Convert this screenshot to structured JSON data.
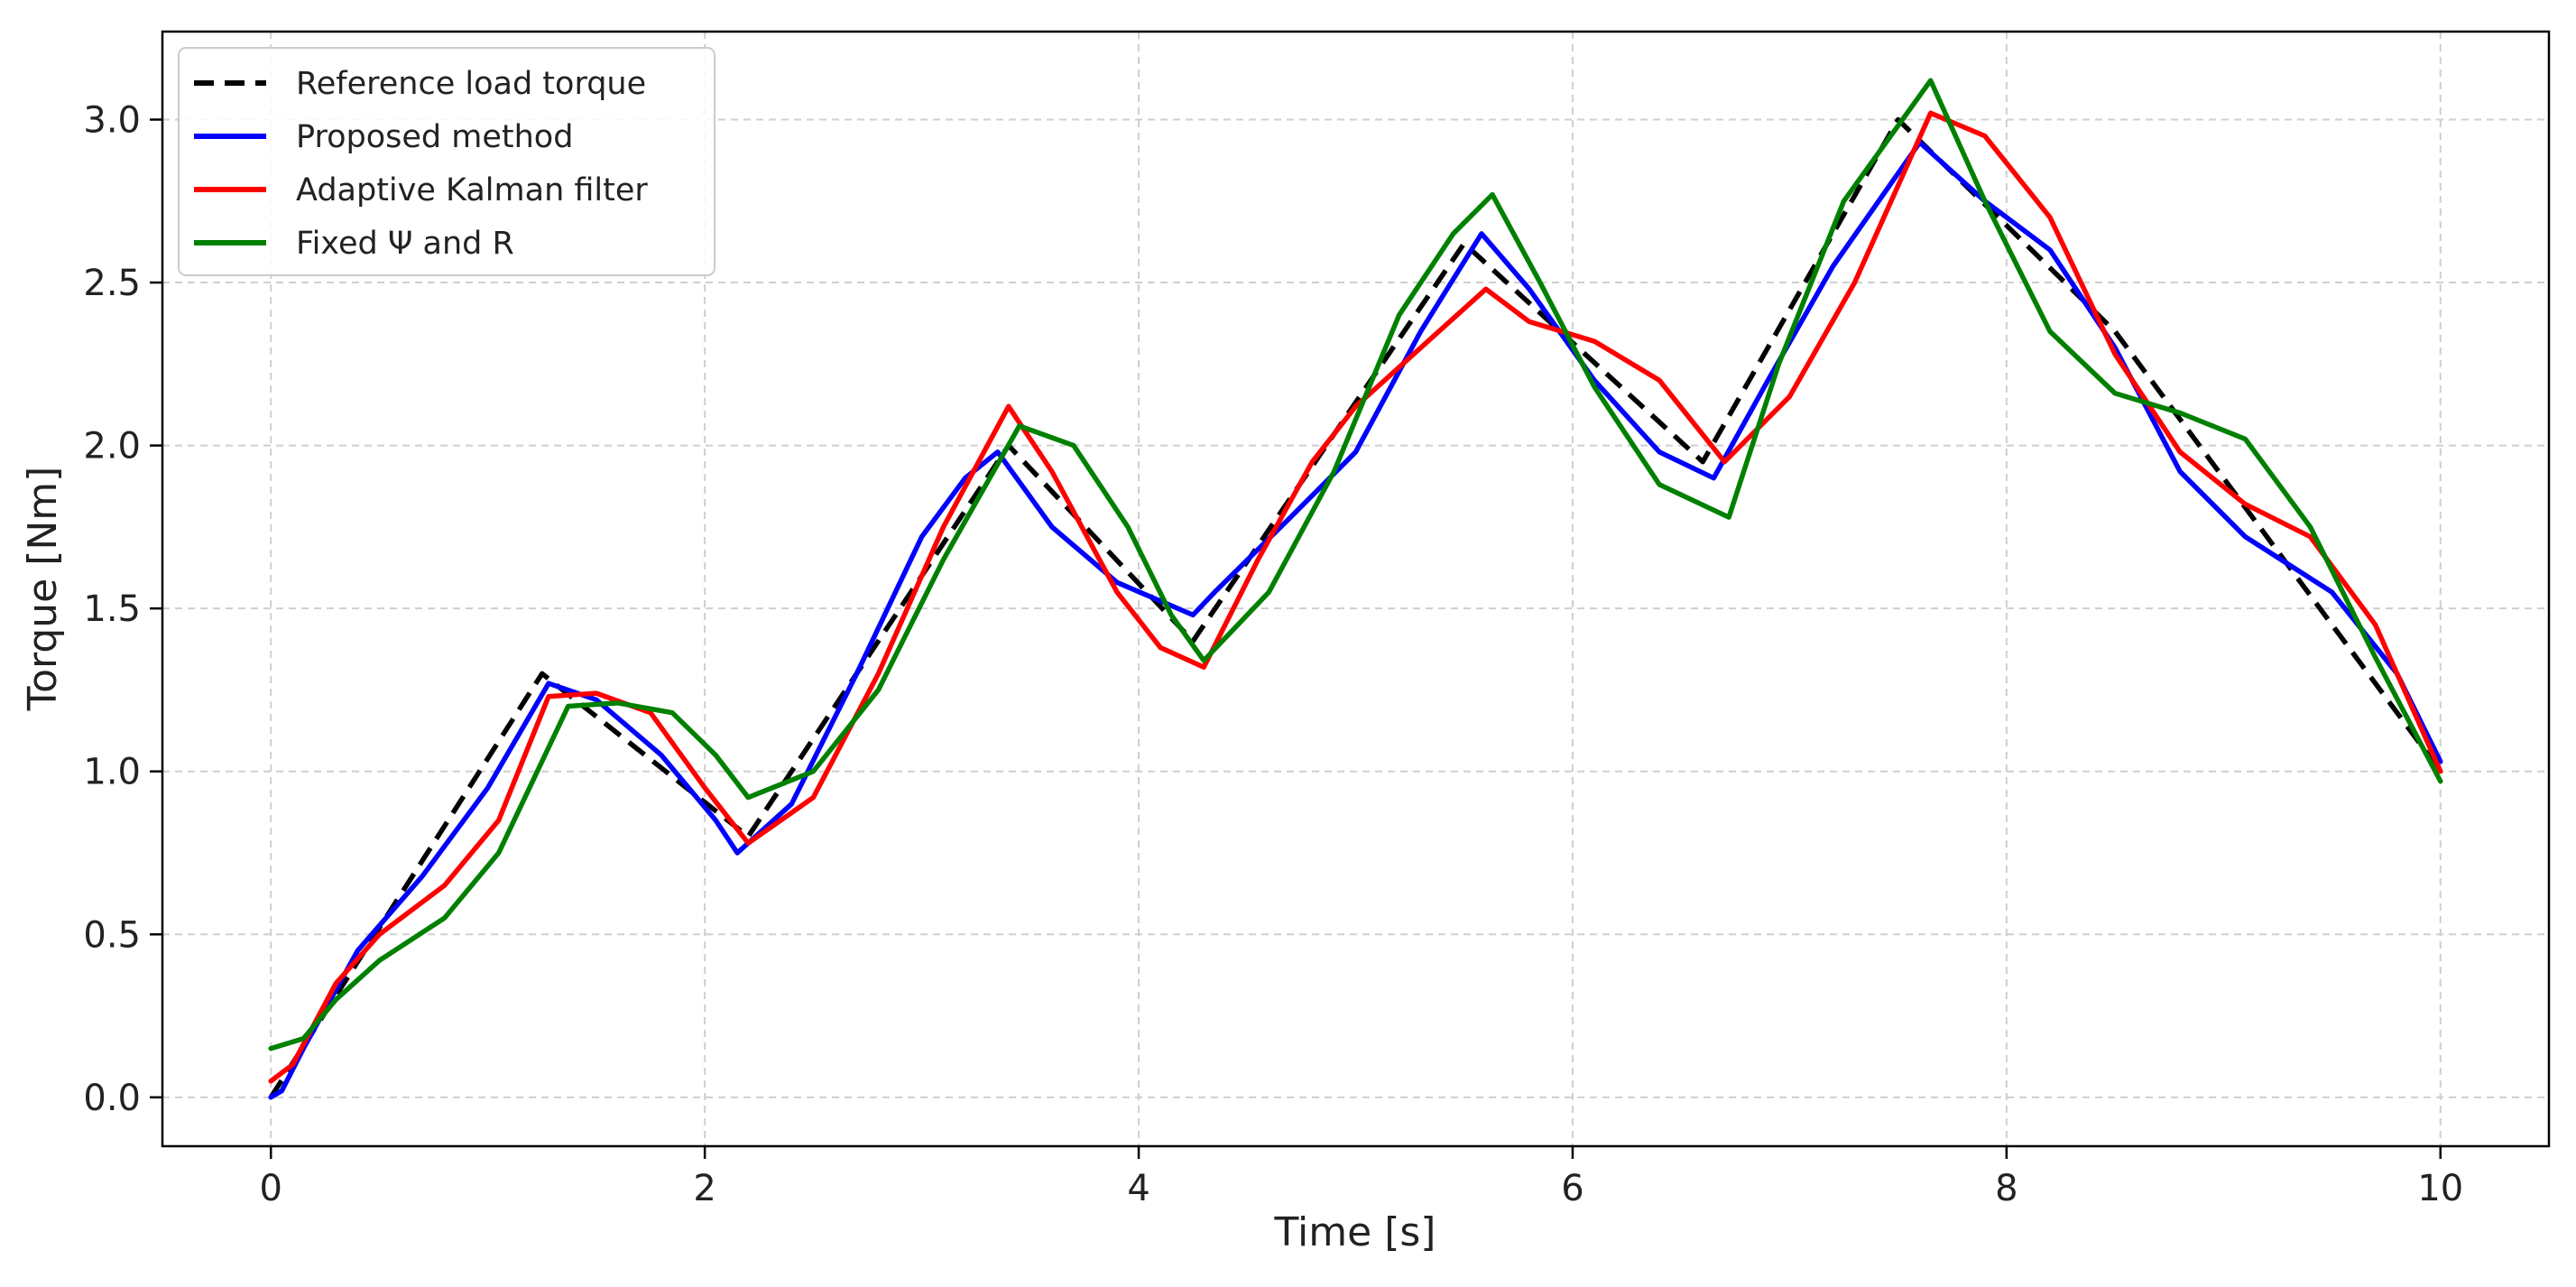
{
  "chart_data": {
    "type": "line",
    "title": "",
    "xlabel": "Time [s]",
    "ylabel": "Torque [Nm]",
    "xlim": [
      -0.5,
      10.5
    ],
    "ylim": [
      -0.15,
      3.27
    ],
    "xticks": [
      0,
      2,
      4,
      6,
      8,
      10
    ],
    "xtick_labels": [
      "0",
      "2",
      "4",
      "6",
      "8",
      "10"
    ],
    "yticks": [
      0.0,
      0.5,
      1.0,
      1.5,
      2.0,
      2.5,
      3.0
    ],
    "ytick_labels": [
      "0.0",
      "0.5",
      "1.0",
      "1.5",
      "2.0",
      "2.5",
      "3.0"
    ],
    "grid": true,
    "legend_position": "top-left",
    "series": [
      {
        "name": "Reference load torque",
        "color": "#000000",
        "dash": "dashed",
        "x": [
          0,
          1.25,
          2.2,
          3.4,
          4.25,
          5.5,
          6.6,
          7.5,
          8.5,
          10.0
        ],
        "y": [
          0.0,
          1.3,
          0.8,
          2.0,
          1.4,
          2.62,
          1.95,
          3.0,
          2.35,
          1.0
        ]
      },
      {
        "name": "Proposed method",
        "color": "#0000ff",
        "dash": "solid",
        "x": [
          0,
          0.05,
          0.15,
          0.4,
          0.7,
          1.0,
          1.28,
          1.5,
          1.8,
          2.05,
          2.15,
          2.4,
          2.7,
          3.0,
          3.2,
          3.35,
          3.6,
          3.9,
          4.25,
          4.35,
          4.7,
          5.0,
          5.3,
          5.58,
          5.8,
          6.1,
          6.4,
          6.65,
          6.9,
          7.2,
          7.6,
          7.9,
          8.2,
          8.5,
          8.8,
          9.1,
          9.5,
          9.8,
          10.0
        ],
        "y": [
          0.0,
          0.02,
          0.15,
          0.45,
          0.68,
          0.95,
          1.27,
          1.22,
          1.05,
          0.85,
          0.75,
          0.9,
          1.3,
          1.72,
          1.9,
          1.98,
          1.75,
          1.58,
          1.48,
          1.55,
          1.78,
          1.98,
          2.35,
          2.65,
          2.48,
          2.2,
          1.98,
          1.9,
          2.2,
          2.55,
          2.93,
          2.75,
          2.6,
          2.3,
          1.92,
          1.72,
          1.55,
          1.3,
          1.03
        ]
      },
      {
        "name": "Adaptive Kalman filter",
        "color": "#ff0000",
        "dash": "solid",
        "x": [
          0,
          0.1,
          0.3,
          0.5,
          0.8,
          1.05,
          1.28,
          1.5,
          1.75,
          2.0,
          2.2,
          2.5,
          2.8,
          3.1,
          3.4,
          3.6,
          3.9,
          4.1,
          4.3,
          4.55,
          4.8,
          5.0,
          5.3,
          5.6,
          5.8,
          6.1,
          6.4,
          6.7,
          7.0,
          7.3,
          7.65,
          7.9,
          8.2,
          8.5,
          8.8,
          9.1,
          9.4,
          9.7,
          10.0
        ],
        "y": [
          0.05,
          0.1,
          0.35,
          0.5,
          0.65,
          0.85,
          1.23,
          1.24,
          1.18,
          0.95,
          0.78,
          0.92,
          1.3,
          1.75,
          2.12,
          1.92,
          1.55,
          1.38,
          1.32,
          1.65,
          1.95,
          2.12,
          2.3,
          2.48,
          2.38,
          2.32,
          2.2,
          1.95,
          2.15,
          2.5,
          3.02,
          2.95,
          2.7,
          2.28,
          1.98,
          1.82,
          1.72,
          1.45,
          1.0
        ]
      },
      {
        "name": "Fixed Ψ and R",
        "color": "#008000",
        "dash": "solid",
        "x": [
          0,
          0.15,
          0.3,
          0.5,
          0.8,
          1.05,
          1.37,
          1.6,
          1.85,
          2.05,
          2.2,
          2.5,
          2.8,
          3.1,
          3.45,
          3.7,
          3.95,
          4.15,
          4.3,
          4.6,
          4.9,
          5.2,
          5.45,
          5.63,
          5.85,
          6.1,
          6.4,
          6.72,
          6.95,
          7.25,
          7.65,
          7.9,
          8.2,
          8.5,
          8.8,
          9.1,
          9.4,
          9.7,
          10.0
        ],
        "y": [
          0.15,
          0.18,
          0.3,
          0.42,
          0.55,
          0.75,
          1.2,
          1.21,
          1.18,
          1.05,
          0.92,
          1.0,
          1.25,
          1.65,
          2.06,
          2.0,
          1.75,
          1.48,
          1.34,
          1.55,
          1.92,
          2.4,
          2.65,
          2.77,
          2.5,
          2.18,
          1.88,
          1.78,
          2.25,
          2.75,
          3.12,
          2.75,
          2.35,
          2.16,
          2.1,
          2.02,
          1.75,
          1.35,
          0.97
        ]
      }
    ]
  }
}
